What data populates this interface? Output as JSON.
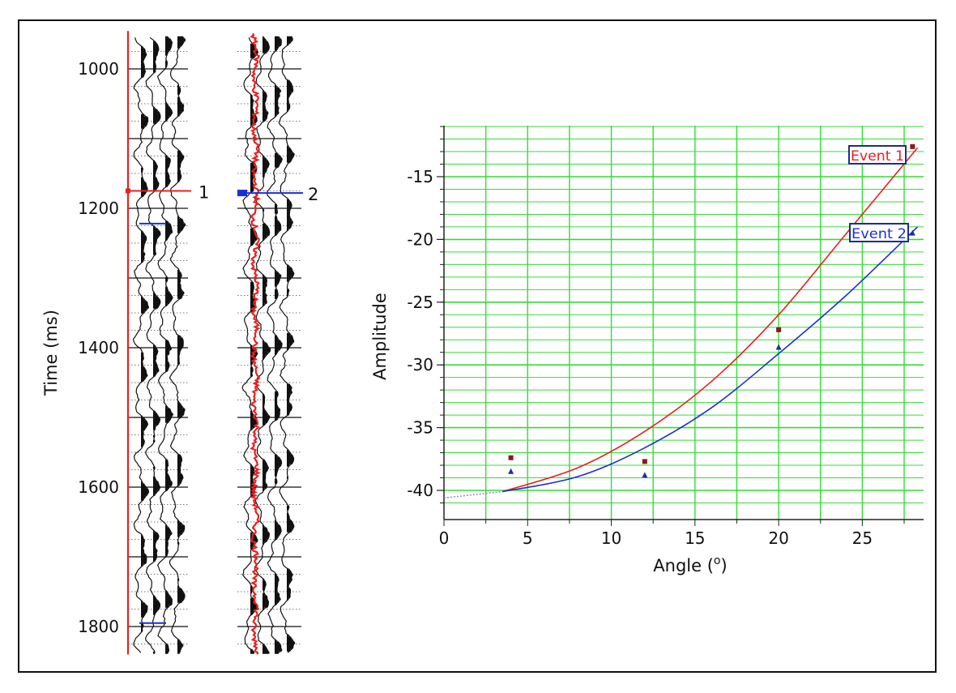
{
  "chart_data": [
    {
      "type": "seismic-gather",
      "ylabel": "Time (ms)",
      "y_ticks": [
        1000,
        1200,
        1400,
        1600,
        1800
      ],
      "ylim": [
        955,
        1840
      ],
      "panels": [
        {
          "marker_label": "1",
          "marker_time": 1175,
          "overlay_color": "#e8201f",
          "overlay": "straight"
        },
        {
          "marker_label": "2",
          "marker_time": 1178,
          "overlay_color": "#e8201f",
          "overlay": "wiggle"
        }
      ],
      "horizon_marks": [
        {
          "panel": 1,
          "time": 1222,
          "color": "#1b2fd6"
        },
        {
          "panel": 1,
          "time": 1795,
          "color": "#1b2fd6"
        }
      ]
    },
    {
      "type": "scatter",
      "xlabel": "Angle (",
      "xlabel_sup": "o",
      "xlabel_end": ")",
      "ylabel": "Amplitude",
      "xlim": [
        0,
        28.5
      ],
      "ylim": [
        -42,
        -11
      ],
      "x_ticks": [
        0,
        5,
        10,
        15,
        20,
        25
      ],
      "y_ticks": [
        -15,
        -20,
        -25,
        -30,
        -35,
        -40
      ],
      "grid": true,
      "grid_color": "#33dd33",
      "series": [
        {
          "name": "Event 1",
          "color": "#e8201f",
          "marker_color": "#8b1a1a",
          "marker": "square",
          "points": [
            {
              "x": 4,
              "y": -37.4
            },
            {
              "x": 12,
              "y": -37.7
            },
            {
              "x": 20,
              "y": -27.2
            },
            {
              "x": 28,
              "y": -12.6
            }
          ],
          "fit_curve": [
            {
              "x": 3.5,
              "y": -40.1
            },
            {
              "x": 8,
              "y": -38.2
            },
            {
              "x": 12,
              "y": -35.3
            },
            {
              "x": 16,
              "y": -31.3
            },
            {
              "x": 20,
              "y": -26.0
            },
            {
              "x": 24,
              "y": -19.6
            },
            {
              "x": 28.3,
              "y": -12.7
            }
          ]
        },
        {
          "name": "Event 2",
          "color": "#1b2fd6",
          "marker_color": "#1b2fa0",
          "marker": "triangle",
          "points": [
            {
              "x": 4,
              "y": -38.5
            },
            {
              "x": 12,
              "y": -38.8
            },
            {
              "x": 20,
              "y": -28.6
            },
            {
              "x": 28,
              "y": -19.5
            }
          ],
          "fit_curve": [
            {
              "x": 3.5,
              "y": -40.1
            },
            {
              "x": 8,
              "y": -38.9
            },
            {
              "x": 12,
              "y": -36.6
            },
            {
              "x": 16,
              "y": -33.4
            },
            {
              "x": 20,
              "y": -29.1
            },
            {
              "x": 24,
              "y": -24.5
            },
            {
              "x": 28.3,
              "y": -19.0
            }
          ]
        }
      ],
      "extrapolation": {
        "color": "#8888dd",
        "points": [
          {
            "x": 0,
            "y": -40.6
          },
          {
            "x": 3.5,
            "y": -40.1
          }
        ]
      }
    }
  ]
}
